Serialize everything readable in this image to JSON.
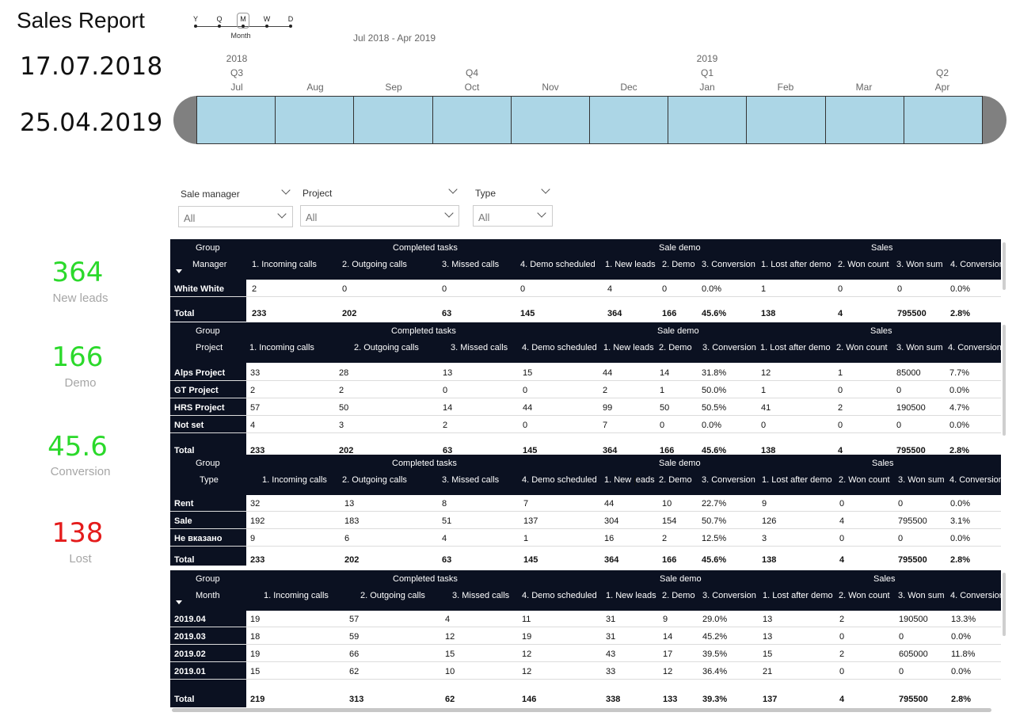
{
  "title": "Sales Report",
  "date_start": "17.07.2018",
  "date_end": "25.04.2019",
  "hierarchy": {
    "levels": [
      "Y",
      "Q",
      "M",
      "W",
      "D"
    ],
    "selected": "M",
    "selected_name": "Month"
  },
  "range_label": "Jul 2018 - Apr 2019",
  "timeline": {
    "years": [
      {
        "label": "2018"
      },
      {
        "label": "2019"
      }
    ],
    "quarters": [
      "Q3",
      "Q4",
      "Q1",
      "Q2"
    ],
    "months": [
      "Jul",
      "Aug",
      "Sep",
      "Oct",
      "Nov",
      "Dec",
      "Jan",
      "Feb",
      "Mar",
      "Apr"
    ]
  },
  "slicers": [
    {
      "label": "Sale manager",
      "value": "All"
    },
    {
      "label": "Project",
      "value": "All"
    },
    {
      "label": "Type",
      "value": "All"
    }
  ],
  "kpis": [
    {
      "value": "364",
      "label": "New leads",
      "color": "#2bd92b"
    },
    {
      "value": "166",
      "label": "Demo",
      "color": "#2bd92b"
    },
    {
      "value": "45.6",
      "label": "Conversion",
      "color": "#2bd92b"
    },
    {
      "value": "138",
      "label": "Lost",
      "color": "#e41b1b"
    }
  ],
  "group_headers": {
    "group": "Group",
    "completed": "Completed tasks",
    "demo": "Sale demo",
    "sales": "Sales"
  },
  "columns": [
    "1. Incoming calls",
    "2. Outgoing calls",
    "3. Missed calls",
    "4. Demo scheduled",
    "1. New leads",
    "2. Demo",
    "3. Conversion",
    "1. Lost after demo",
    "2. Won count",
    "3. Won sum",
    "4. Conversion"
  ],
  "tables": [
    {
      "dim": "Manager",
      "rows": [
        {
          "label": "White White",
          "cells": [
            "2",
            "0",
            "0",
            "0",
            "4",
            "0",
            "0.0%",
            "1",
            "0",
            "0",
            "0.0%"
          ]
        }
      ],
      "total": {
        "label": "Total",
        "cells": [
          "233",
          "202",
          "63",
          "145",
          "364",
          "166",
          "45.6%",
          "138",
          "4",
          "795500",
          "2.8%"
        ]
      }
    },
    {
      "dim": "Project",
      "rows": [
        {
          "label": "Alps Project",
          "cells": [
            "33",
            "28",
            "13",
            "15",
            "44",
            "14",
            "31.8%",
            "12",
            "1",
            "85000",
            "7.7%"
          ]
        },
        {
          "label": "GT Project",
          "cells": [
            "2",
            "2",
            "0",
            "0",
            "2",
            "1",
            "50.0%",
            "1",
            "0",
            "0",
            "0.0%"
          ]
        },
        {
          "label": "HRS Project",
          "cells": [
            "57",
            "50",
            "14",
            "44",
            "99",
            "50",
            "50.5%",
            "41",
            "2",
            "190500",
            "4.7%"
          ]
        },
        {
          "label": "Not set",
          "cells": [
            "4",
            "3",
            "2",
            "0",
            "7",
            "0",
            "0.0%",
            "0",
            "0",
            "0",
            "0.0%"
          ]
        }
      ],
      "total": {
        "label": "Total",
        "cells": [
          "233",
          "202",
          "63",
          "145",
          "364",
          "166",
          "45.6%",
          "138",
          "4",
          "795500",
          "2.8%"
        ]
      }
    },
    {
      "dim": "Type",
      "rows": [
        {
          "label": "Rent",
          "cells": [
            "32",
            "13",
            "8",
            "7",
            "44",
            "10",
            "22.7%",
            "9",
            "0",
            "0",
            "0.0%"
          ]
        },
        {
          "label": "Sale",
          "cells": [
            "192",
            "183",
            "51",
            "137",
            "304",
            "154",
            "50.7%",
            "126",
            "4",
            "795500",
            "3.1%"
          ]
        },
        {
          "label": "Не вказано",
          "cells": [
            "9",
            "6",
            "4",
            "1",
            "16",
            "2",
            "12.5%",
            "3",
            "0",
            "0",
            "0.0%"
          ]
        }
      ],
      "total": {
        "label": "Total",
        "cells": [
          "233",
          "202",
          "63",
          "145",
          "364",
          "166",
          "45.6%",
          "138",
          "4",
          "795500",
          "2.8%"
        ]
      }
    },
    {
      "dim": "Month",
      "rows": [
        {
          "label": "2019.04",
          "cells": [
            "19",
            "57",
            "4",
            "11",
            "31",
            "9",
            "29.0%",
            "13",
            "2",
            "190500",
            "13.3%"
          ]
        },
        {
          "label": "2019.03",
          "cells": [
            "18",
            "59",
            "12",
            "19",
            "31",
            "14",
            "45.2%",
            "13",
            "0",
            "0",
            "0.0%"
          ]
        },
        {
          "label": "2019.02",
          "cells": [
            "19",
            "66",
            "15",
            "12",
            "43",
            "17",
            "39.5%",
            "15",
            "2",
            "605000",
            "11.8%"
          ]
        },
        {
          "label": "2019.01",
          "cells": [
            "15",
            "62",
            "10",
            "12",
            "33",
            "12",
            "36.4%",
            "21",
            "0",
            "0",
            "0.0%"
          ]
        }
      ],
      "total": {
        "label": "Total",
        "cells": [
          "219",
          "313",
          "62",
          "146",
          "338",
          "133",
          "39.3%",
          "137",
          "4",
          "795500",
          "2.8%"
        ]
      }
    }
  ]
}
